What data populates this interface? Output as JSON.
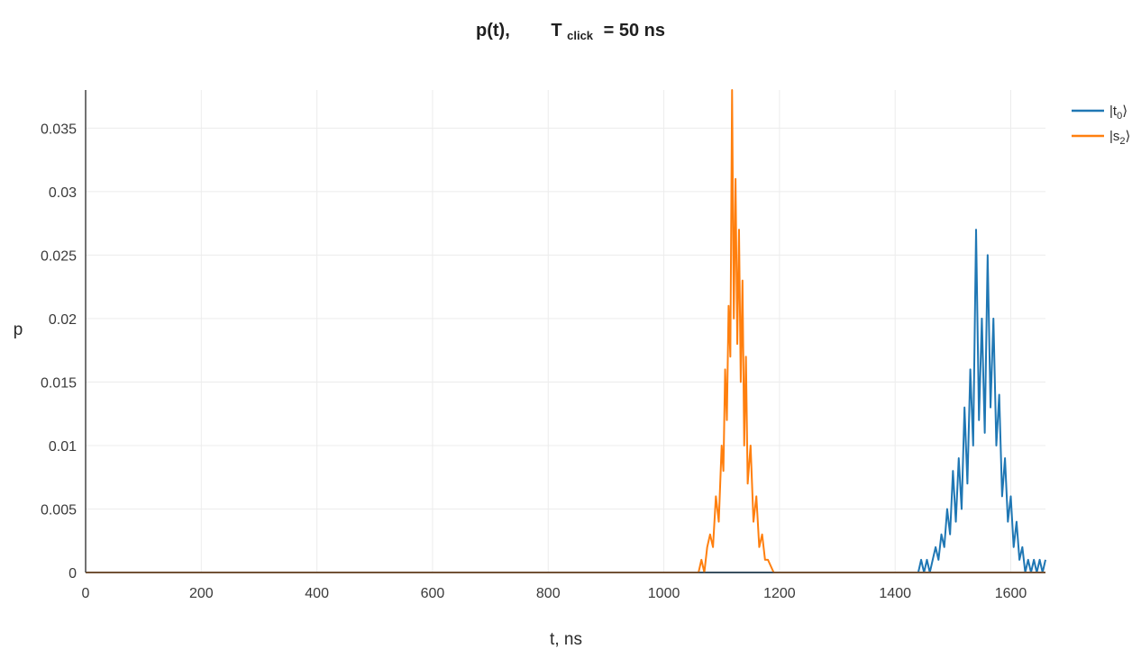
{
  "chart_data": {
    "type": "line",
    "title": {
      "left": "p(t),",
      "symbol": "T",
      "subscript": "click",
      "right": "= 50 ns"
    },
    "xlabel": "t, ns",
    "ylabel": "p",
    "xlim": [
      0,
      1660
    ],
    "ylim": [
      0,
      0.038
    ],
    "x_ticks": [
      0,
      200,
      400,
      600,
      800,
      1000,
      1200,
      1400,
      1600
    ],
    "x_tick_labels": [
      "0",
      "200",
      "400",
      "600",
      "800",
      "1000",
      "1200",
      "1400",
      "1600"
    ],
    "y_ticks": [
      0,
      0.005,
      0.01,
      0.015,
      0.02,
      0.025,
      0.03,
      0.035
    ],
    "y_tick_labels": [
      "0",
      "0.005",
      "0.01",
      "0.015",
      "0.02",
      "0.025",
      "0.03",
      "0.035"
    ],
    "grid": true,
    "legend_position": "top-right",
    "series": [
      {
        "legend_base": "|t",
        "legend_sub": "0",
        "legend_close": "⟩",
        "color": "#1f77b4",
        "x": [
          0,
          1440,
          1445,
          1450,
          1455,
          1460,
          1465,
          1470,
          1475,
          1480,
          1485,
          1490,
          1495,
          1500,
          1505,
          1510,
          1515,
          1520,
          1525,
          1530,
          1535,
          1540,
          1545,
          1550,
          1555,
          1560,
          1565,
          1570,
          1575,
          1580,
          1585,
          1590,
          1595,
          1600,
          1605,
          1610,
          1615,
          1620,
          1625,
          1630,
          1635,
          1640,
          1645,
          1650,
          1655,
          1660
        ],
        "y": [
          0,
          0,
          0.001,
          0,
          0.001,
          0,
          0.001,
          0.002,
          0.001,
          0.003,
          0.002,
          0.005,
          0.003,
          0.008,
          0.004,
          0.009,
          0.005,
          0.013,
          0.007,
          0.016,
          0.01,
          0.027,
          0.012,
          0.02,
          0.011,
          0.025,
          0.013,
          0.02,
          0.01,
          0.014,
          0.006,
          0.009,
          0.004,
          0.006,
          0.002,
          0.004,
          0.001,
          0.002,
          0,
          0.001,
          0,
          0.001,
          0,
          0.001,
          0,
          0.001
        ]
      },
      {
        "legend_base": "|s",
        "legend_sub": "2",
        "legend_close": "⟩",
        "color": "#ff7f0e",
        "x": [
          0,
          1060,
          1065,
          1070,
          1075,
          1080,
          1085,
          1090,
          1095,
          1100,
          1103,
          1106,
          1109,
          1112,
          1115,
          1118,
          1121,
          1124,
          1127,
          1130,
          1133,
          1136,
          1139,
          1142,
          1145,
          1150,
          1155,
          1160,
          1165,
          1170,
          1175,
          1180,
          1190,
          1660
        ],
        "y": [
          0,
          0,
          0.001,
          0,
          0.002,
          0.003,
          0.002,
          0.006,
          0.004,
          0.01,
          0.008,
          0.016,
          0.012,
          0.021,
          0.017,
          0.038,
          0.02,
          0.031,
          0.018,
          0.027,
          0.015,
          0.023,
          0.01,
          0.017,
          0.007,
          0.01,
          0.004,
          0.006,
          0.002,
          0.003,
          0.001,
          0.001,
          0,
          0
        ]
      }
    ]
  }
}
